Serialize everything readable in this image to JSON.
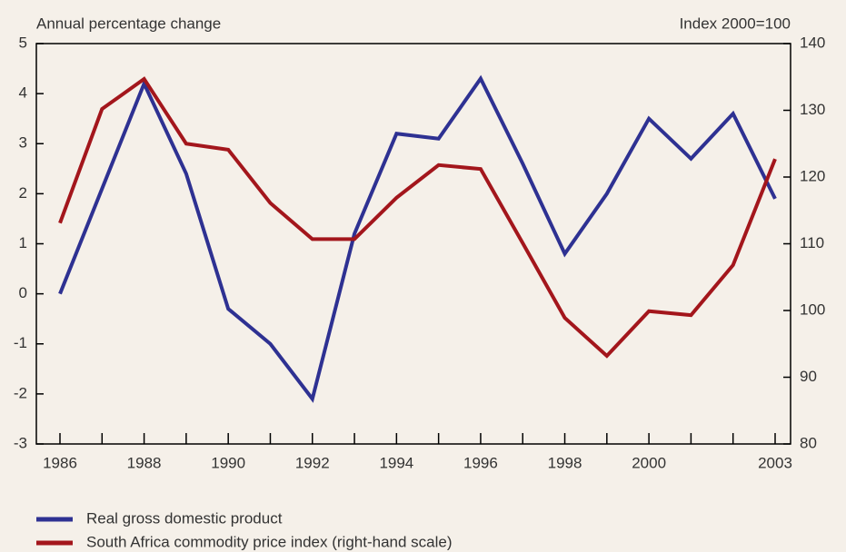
{
  "chart_data": {
    "type": "line",
    "y_title": "Annual percentage change",
    "y2_title": "Index 2000=100",
    "categories": [
      "1986",
      null,
      "1988",
      null,
      "1990",
      null,
      "1992",
      null,
      "1994",
      null,
      "1996",
      null,
      "1998",
      null,
      "2000",
      null,
      null,
      "2003"
    ],
    "series": [
      {
        "name": "Real gross domestic product",
        "color": "#2e3192",
        "axis": "y",
        "values": [
          0.0,
          2.1,
          4.2,
          2.4,
          -0.3,
          -1.0,
          -2.1,
          1.2,
          3.2,
          3.1,
          4.3,
          2.6,
          0.8,
          2.0,
          3.5,
          2.7,
          3.6,
          1.9
        ]
      },
      {
        "name": "South Africa commodity price index (right-hand scale)",
        "color": "#a3161c",
        "axis": "y2",
        "values": [
          113.1,
          130.2,
          134.7,
          125.0,
          124.1,
          116.1,
          110.7,
          110.7,
          116.9,
          121.8,
          121.2,
          110.1,
          98.9,
          93.2,
          99.9,
          99.3,
          106.8,
          122.7
        ]
      }
    ],
    "ylim": [
      -3,
      5
    ],
    "yticks": [
      -3,
      -2,
      -1,
      0,
      1,
      2,
      3,
      4,
      5
    ],
    "y2lim": [
      80,
      140
    ],
    "y2ticks": [
      80,
      90,
      100,
      110,
      120,
      130,
      140
    ]
  }
}
